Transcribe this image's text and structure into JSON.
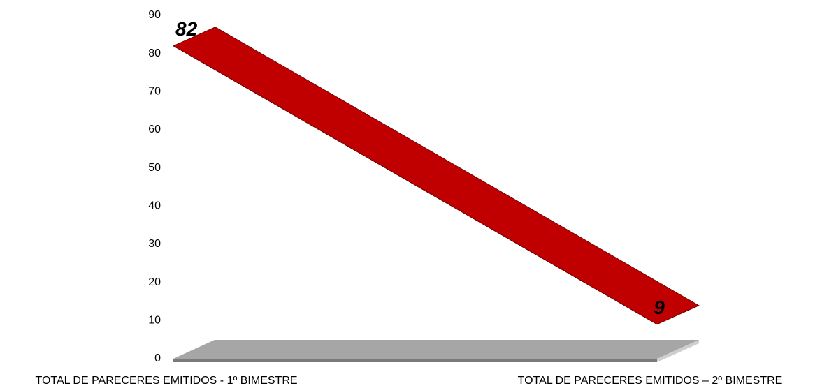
{
  "chart_data": {
    "type": "line",
    "categories": [
      "TOTAL DE  PARECERES EMITIDOS - 1º BIMESTRE",
      "TOTAL DE  PARECERES EMITIDOS – 2º BIMESTRE"
    ],
    "values": [
      82,
      9
    ],
    "color": "#c00000",
    "ylim": [
      0,
      90
    ],
    "yticks": [
      0,
      10,
      20,
      30,
      40,
      50,
      60,
      70,
      80,
      90
    ],
    "grid": false
  }
}
